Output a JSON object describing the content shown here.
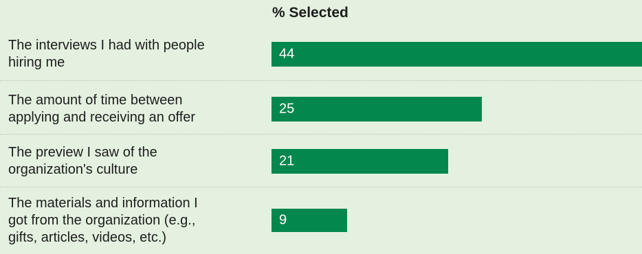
{
  "chart_data": {
    "type": "bar",
    "orientation": "horizontal",
    "column_header": "% Selected",
    "categories": [
      "The interviews I had with people\nhiring me",
      "The amount of time between\napplying and receiving an offer",
      "The preview I saw of the\norganization's culture",
      "The materials and information I\ngot from the organization (e.g.,\ngifts, articles, videos, etc.)"
    ],
    "values": [
      44,
      25,
      21,
      9
    ],
    "xlim": [
      0,
      44
    ],
    "grid": false,
    "legend": "none",
    "colors": {
      "bar": "#04874d",
      "background": "#e4f1e0",
      "bar_label": "#ffffff",
      "text": "#1c1c1c"
    }
  }
}
